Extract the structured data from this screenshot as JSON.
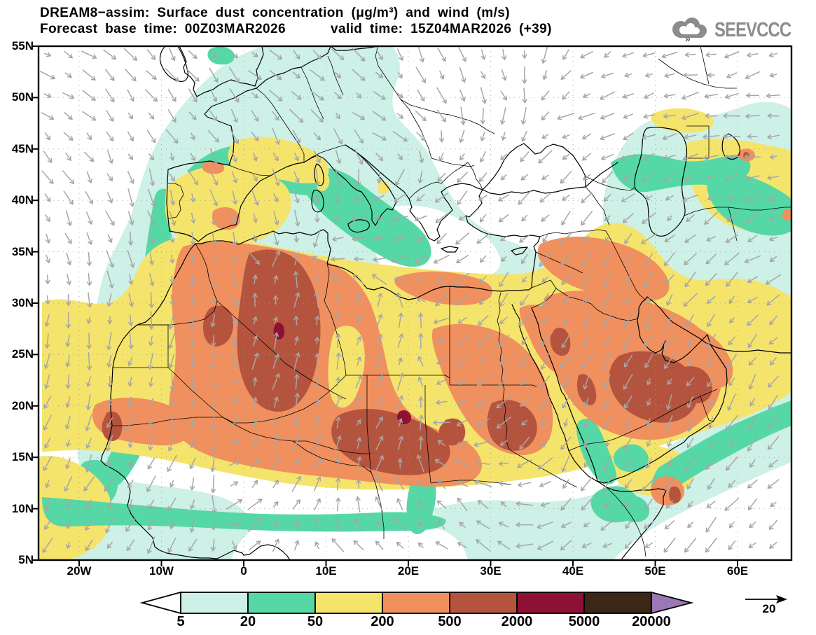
{
  "header": {
    "title": "DREAM8−assim: Surface dust concentration (μg/m³) and wind (m/s)",
    "subtitle": "Forecast base time: 00Z03MAR2026      valid time: 15Z04MAR2026 (+39)",
    "logo": "SEEVCCC"
  },
  "axes": {
    "lat": [
      "55N",
      "50N",
      "45N",
      "40N",
      "35N",
      "30N",
      "25N",
      "20N",
      "15N",
      "10N",
      "5N"
    ],
    "lon": [
      "20W",
      "10W",
      "0",
      "10E",
      "20E",
      "30E",
      "40E",
      "50E",
      "60E"
    ]
  },
  "colorbar": {
    "labels": [
      "5",
      "20",
      "50",
      "200",
      "500",
      "2000",
      "5000",
      "20000"
    ],
    "segments": [
      {
        "range": "<5",
        "color": "#ffffff"
      },
      {
        "range": "5-20",
        "color": "#cdf0e7"
      },
      {
        "range": "20-50",
        "color": "#55d8a6"
      },
      {
        "range": "50-200",
        "color": "#f5e46c"
      },
      {
        "range": "200-500",
        "color": "#f0905f"
      },
      {
        "range": "500-2000",
        "color": "#b5543e"
      },
      {
        "range": "2000-5000",
        "color": "#8e1034"
      },
      {
        "range": "5000-20000",
        "color": "#3c2617"
      },
      {
        "range": ">20000",
        "color": "#9b77b5"
      }
    ]
  },
  "wind_reference": {
    "value": "20"
  },
  "chart_data": {
    "type": "filled-contour-map",
    "variable": "Surface dust concentration",
    "units": "μg/m³",
    "contour_levels": [
      5,
      20,
      50,
      200,
      500,
      2000,
      5000,
      20000
    ],
    "level_colors": [
      "#ffffff",
      "#cdf0e7",
      "#55d8a6",
      "#f5e46c",
      "#f0905f",
      "#b5543e",
      "#8e1034",
      "#3c2617",
      "#9b77b5"
    ],
    "overlay": "wind vectors (m/s)",
    "wind_reference_m_s": 20,
    "lat_ticks": [
      "55N",
      "50N",
      "45N",
      "40N",
      "35N",
      "30N",
      "25N",
      "20N",
      "15N",
      "10N",
      "5N"
    ],
    "lon_ticks": [
      "20W",
      "10W",
      "0",
      "10E",
      "20E",
      "30E",
      "40E",
      "50E",
      "60E"
    ]
  }
}
